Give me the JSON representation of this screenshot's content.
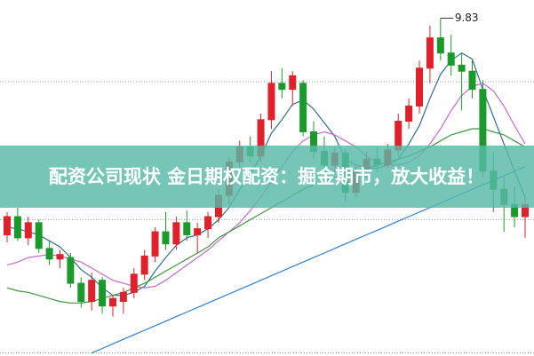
{
  "chart_data": {
    "type": "candlestick",
    "title": "配资公司现状 金日期权配资：掘金期市，放大收益！",
    "ylim": [
      7.6,
      9.95
    ],
    "gridlines": [
      9.41,
      8.5,
      7.62
    ],
    "up_color": "#e0202a",
    "down_color": "#1a9a2a",
    "max_label": 9.83,
    "max_index": 41,
    "open": [
      8.4,
      8.52,
      8.38,
      8.48,
      8.31,
      8.24,
      8.25,
      8.08,
      7.96,
      8.1,
      7.93,
      7.96,
      8.02,
      8.14,
      8.26,
      8.42,
      8.34,
      8.48,
      8.4,
      8.44,
      8.52,
      8.66,
      8.88,
      8.98,
      8.92,
      9.16,
      9.4,
      9.36,
      9.4,
      9.08,
      8.95,
      8.86,
      8.94,
      8.68,
      8.82,
      8.9,
      8.86,
      8.96,
      9.15,
      9.25,
      9.5,
      9.7,
      9.6,
      9.52,
      9.48,
      9.36,
      8.82,
      8.7,
      8.6,
      8.52
    ],
    "high": [
      8.55,
      8.58,
      8.52,
      8.5,
      8.36,
      8.3,
      8.28,
      8.12,
      8.15,
      8.12,
      8.0,
      8.05,
      8.18,
      8.3,
      8.45,
      8.55,
      8.52,
      8.56,
      8.48,
      8.55,
      8.7,
      8.92,
      9.02,
      9.05,
      9.2,
      9.48,
      9.5,
      9.48,
      9.42,
      9.15,
      9.05,
      8.98,
      8.96,
      8.85,
      8.95,
      8.98,
      9.0,
      9.2,
      9.3,
      9.55,
      9.78,
      9.83,
      9.72,
      9.6,
      9.55,
      9.42,
      8.95,
      8.78,
      8.72,
      8.66
    ],
    "low": [
      8.35,
      8.36,
      8.33,
      8.28,
      8.2,
      8.18,
      8.05,
      7.92,
      7.9,
      7.88,
      7.86,
      7.88,
      7.98,
      8.1,
      8.22,
      8.3,
      8.3,
      8.36,
      8.28,
      8.38,
      8.48,
      8.6,
      8.8,
      8.88,
      8.88,
      9.1,
      9.3,
      9.25,
      9.05,
      8.9,
      8.82,
      8.8,
      8.62,
      8.65,
      8.78,
      8.82,
      8.84,
      8.92,
      9.1,
      9.2,
      9.4,
      9.55,
      9.45,
      9.22,
      9.3,
      8.78,
      8.55,
      8.42,
      8.45,
      8.38
    ],
    "close": [
      8.52,
      8.38,
      8.48,
      8.31,
      8.24,
      8.27,
      8.08,
      7.96,
      8.1,
      7.93,
      7.98,
      8.02,
      8.14,
      8.26,
      8.42,
      8.34,
      8.48,
      8.4,
      8.44,
      8.52,
      8.66,
      8.88,
      8.98,
      8.92,
      9.16,
      9.4,
      9.36,
      9.45,
      9.08,
      8.95,
      8.86,
      8.94,
      8.68,
      8.82,
      8.9,
      8.86,
      8.96,
      9.15,
      9.25,
      9.5,
      9.7,
      9.6,
      9.52,
      9.48,
      9.36,
      8.82,
      8.7,
      8.6,
      8.52,
      8.6
    ],
    "lines": [
      {
        "color": "#2f6f8f",
        "values": [
          8.45,
          8.44,
          8.42,
          8.4,
          8.36,
          8.32,
          8.25,
          8.17,
          8.12,
          8.05,
          8.0,
          8.0,
          8.02,
          8.06,
          8.16,
          8.25,
          8.33,
          8.38,
          8.4,
          8.44,
          8.5,
          8.58,
          8.7,
          8.8,
          8.92,
          9.07,
          9.16,
          9.26,
          9.29,
          9.23,
          9.14,
          9.05,
          8.9,
          8.86,
          8.84,
          8.84,
          8.86,
          8.9,
          9.0,
          9.12,
          9.3,
          9.46,
          9.55,
          9.6,
          9.56,
          9.36,
          9.18,
          9.0,
          8.82,
          8.65
        ]
      },
      {
        "color": "#c86ad0",
        "values": [
          8.2,
          8.22,
          8.25,
          8.26,
          8.27,
          8.26,
          8.24,
          8.22,
          8.18,
          8.14,
          8.1,
          8.08,
          8.06,
          8.05,
          8.06,
          8.1,
          8.15,
          8.2,
          8.25,
          8.3,
          8.36,
          8.42,
          8.48,
          8.56,
          8.65,
          8.75,
          8.85,
          8.95,
          9.02,
          9.06,
          9.08,
          9.06,
          9.02,
          8.98,
          8.92,
          8.88,
          8.86,
          8.86,
          8.88,
          8.92,
          9.0,
          9.1,
          9.22,
          9.32,
          9.38,
          9.4,
          9.35,
          9.25,
          9.12,
          9.0
        ]
      },
      {
        "color": "#3a9a3a",
        "values": [
          8.05,
          8.03,
          8.02,
          8.0,
          7.98,
          7.96,
          7.95,
          7.95,
          7.96,
          7.98,
          8.0,
          8.02,
          8.05,
          8.08,
          8.12,
          8.16,
          8.2,
          8.24,
          8.28,
          8.32,
          8.38,
          8.42,
          8.46,
          8.5,
          8.54,
          8.58,
          8.62,
          8.66,
          8.7,
          8.73,
          8.76,
          8.78,
          8.8,
          8.82,
          8.84,
          8.86,
          8.88,
          8.9,
          8.92,
          8.95,
          8.98,
          9.02,
          9.06,
          9.08,
          9.1,
          9.1,
          9.08,
          9.06,
          9.02,
          8.98
        ]
      },
      {
        "color": "#2a82d8",
        "values": [
          null,
          null,
          null,
          null,
          null,
          null,
          null,
          null,
          7.62,
          7.65,
          7.68,
          7.71,
          7.74,
          7.77,
          7.8,
          7.83,
          7.86,
          7.89,
          7.92,
          7.95,
          7.98,
          8.01,
          8.04,
          8.07,
          8.1,
          8.13,
          8.16,
          8.19,
          8.22,
          8.25,
          8.28,
          8.31,
          8.34,
          8.37,
          8.4,
          8.43,
          8.46,
          8.49,
          8.52,
          8.55,
          8.58,
          8.61,
          8.64,
          8.67,
          8.7,
          8.73,
          8.76,
          8.79,
          8.82,
          8.85
        ]
      }
    ],
    "banner_color": "rgba(88,186,168,0.82)"
  }
}
